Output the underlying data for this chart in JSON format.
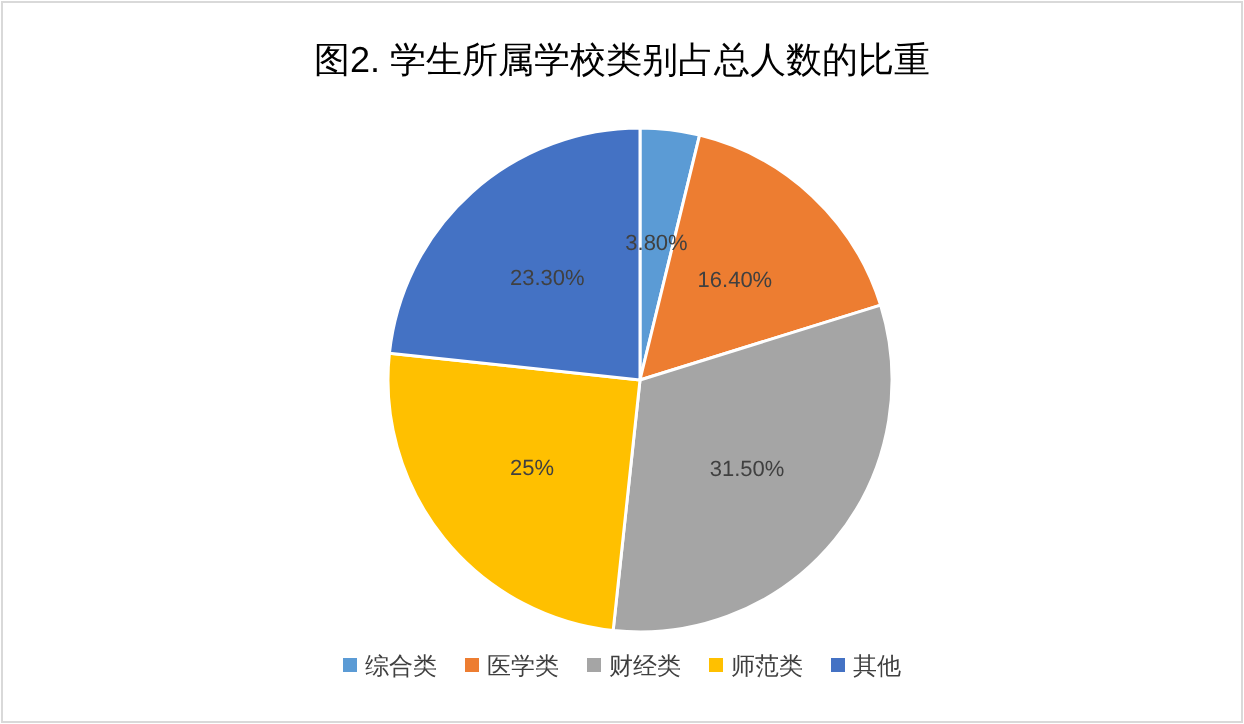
{
  "chart_data": {
    "type": "pie",
    "title": "图2. 学生所属学校类别占总人数的比重",
    "categories": [
      "综合类",
      "医学类",
      "财经类",
      "师范类",
      "其他"
    ],
    "values": [
      3.8,
      16.4,
      31.5,
      25,
      23.3
    ],
    "value_labels": [
      "3.80%",
      "16.40%",
      "31.50%",
      "25%",
      "23.30%"
    ],
    "colors": [
      "#5b9bd5",
      "#ed7d31",
      "#a5a5a5",
      "#ffc000",
      "#4472c4"
    ],
    "legend": "bottom"
  }
}
